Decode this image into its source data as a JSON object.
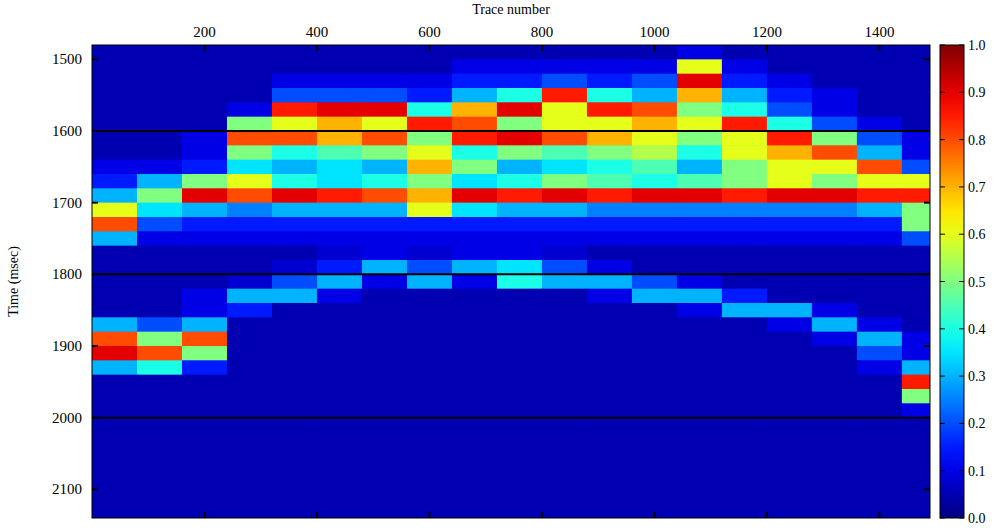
{
  "chart_data": {
    "type": "heatmap",
    "x_label": "Trace number",
    "y_label": "Time (msec)",
    "xlim": [
      0,
      1490
    ],
    "ylim": [
      1480,
      2140
    ],
    "xticks": [
      200,
      400,
      600,
      800,
      1000,
      1200,
      1400
    ],
    "yticks": [
      1500,
      1600,
      1700,
      1800,
      1900,
      2000,
      2100
    ],
    "x_edges": [
      0,
      80,
      160,
      240,
      320,
      400,
      480,
      560,
      640,
      720,
      800,
      880,
      960,
      1040,
      1120,
      1200,
      1280,
      1360,
      1440,
      1490
    ],
    "y_edges": [
      1480,
      1500,
      1520,
      1540,
      1560,
      1580,
      1600,
      1620,
      1640,
      1660,
      1680,
      1700,
      1720,
      1740,
      1760,
      1780,
      1800,
      1820,
      1840,
      1860,
      1880,
      1900,
      1920,
      1940,
      1960,
      1980,
      2000,
      2020,
      2040,
      2060,
      2080,
      2100,
      2120,
      2140
    ],
    "cells": [
      [
        0.05,
        0.05,
        0.05,
        0.05,
        0.05,
        0.05,
        0.05,
        0.05,
        0.05,
        0.05,
        0.05,
        0.05,
        0.05,
        0.1,
        0.05,
        0.05,
        0.05,
        0.05,
        0.05
      ],
      [
        0.05,
        0.05,
        0.05,
        0.05,
        0.05,
        0.05,
        0.05,
        0.05,
        0.1,
        0.1,
        0.1,
        0.1,
        0.1,
        0.6,
        0.1,
        0.05,
        0.05,
        0.05,
        0.05
      ],
      [
        0.05,
        0.05,
        0.05,
        0.05,
        0.1,
        0.1,
        0.1,
        0.1,
        0.15,
        0.15,
        0.2,
        0.15,
        0.2,
        0.9,
        0.15,
        0.1,
        0.05,
        0.05,
        0.05
      ],
      [
        0.05,
        0.05,
        0.05,
        0.05,
        0.2,
        0.2,
        0.2,
        0.15,
        0.3,
        0.4,
        0.85,
        0.4,
        0.3,
        0.7,
        0.3,
        0.15,
        0.1,
        0.05,
        0.05
      ],
      [
        0.05,
        0.05,
        0.05,
        0.1,
        0.85,
        0.9,
        0.9,
        0.4,
        0.7,
        0.9,
        0.6,
        0.85,
        0.8,
        0.5,
        0.4,
        0.2,
        0.1,
        0.05,
        0.05
      ],
      [
        0.05,
        0.05,
        0.05,
        0.5,
        0.6,
        0.7,
        0.6,
        0.85,
        0.8,
        0.5,
        0.6,
        0.6,
        0.7,
        0.6,
        0.85,
        0.4,
        0.2,
        0.1,
        0.05
      ],
      [
        0.05,
        0.05,
        0.1,
        0.8,
        0.8,
        0.7,
        0.8,
        0.5,
        0.85,
        0.9,
        0.8,
        0.7,
        0.6,
        0.5,
        0.6,
        0.85,
        0.5,
        0.2,
        0.1
      ],
      [
        0.05,
        0.05,
        0.1,
        0.5,
        0.4,
        0.45,
        0.5,
        0.6,
        0.4,
        0.5,
        0.45,
        0.5,
        0.55,
        0.4,
        0.6,
        0.7,
        0.8,
        0.3,
        0.1
      ],
      [
        0.1,
        0.1,
        0.15,
        0.35,
        0.3,
        0.35,
        0.3,
        0.7,
        0.5,
        0.3,
        0.35,
        0.4,
        0.45,
        0.3,
        0.5,
        0.6,
        0.6,
        0.8,
        0.2
      ],
      [
        0.15,
        0.3,
        0.5,
        0.6,
        0.4,
        0.35,
        0.4,
        0.5,
        0.35,
        0.4,
        0.5,
        0.45,
        0.4,
        0.45,
        0.5,
        0.6,
        0.5,
        0.6,
        0.6
      ],
      [
        0.3,
        0.5,
        0.9,
        0.8,
        0.9,
        0.85,
        0.8,
        0.7,
        0.9,
        0.85,
        0.9,
        0.85,
        0.9,
        0.9,
        0.85,
        0.9,
        0.9,
        0.85,
        0.85
      ],
      [
        0.6,
        0.35,
        0.3,
        0.25,
        0.3,
        0.3,
        0.3,
        0.6,
        0.35,
        0.3,
        0.3,
        0.25,
        0.25,
        0.25,
        0.25,
        0.25,
        0.25,
        0.3,
        0.5
      ],
      [
        0.8,
        0.2,
        0.15,
        0.15,
        0.15,
        0.15,
        0.15,
        0.15,
        0.15,
        0.15,
        0.15,
        0.15,
        0.15,
        0.15,
        0.15,
        0.15,
        0.15,
        0.15,
        0.5
      ],
      [
        0.3,
        0.1,
        0.1,
        0.1,
        0.1,
        0.1,
        0.1,
        0.1,
        0.1,
        0.1,
        0.1,
        0.1,
        0.1,
        0.1,
        0.1,
        0.1,
        0.1,
        0.1,
        0.2
      ],
      [
        0.05,
        0.05,
        0.05,
        0.05,
        0.05,
        0.08,
        0.1,
        0.08,
        0.1,
        0.1,
        0.08,
        0.05,
        0.05,
        0.05,
        0.05,
        0.05,
        0.05,
        0.05,
        0.05
      ],
      [
        0.05,
        0.05,
        0.05,
        0.05,
        0.08,
        0.15,
        0.3,
        0.2,
        0.3,
        0.35,
        0.2,
        0.1,
        0.05,
        0.05,
        0.05,
        0.05,
        0.05,
        0.05,
        0.05
      ],
      [
        0.05,
        0.05,
        0.05,
        0.08,
        0.2,
        0.3,
        0.1,
        0.3,
        0.1,
        0.4,
        0.3,
        0.3,
        0.2,
        0.1,
        0.05,
        0.05,
        0.05,
        0.05,
        0.05
      ],
      [
        0.05,
        0.05,
        0.1,
        0.3,
        0.3,
        0.1,
        0.05,
        0.05,
        0.05,
        0.05,
        0.05,
        0.1,
        0.3,
        0.3,
        0.15,
        0.05,
        0.05,
        0.05,
        0.05
      ],
      [
        0.05,
        0.05,
        0.1,
        0.15,
        0.05,
        0.05,
        0.05,
        0.05,
        0.05,
        0.05,
        0.05,
        0.05,
        0.05,
        0.1,
        0.3,
        0.3,
        0.1,
        0.05,
        0.05
      ],
      [
        0.3,
        0.2,
        0.3,
        0.05,
        0.05,
        0.05,
        0.05,
        0.05,
        0.05,
        0.05,
        0.05,
        0.05,
        0.05,
        0.05,
        0.05,
        0.1,
        0.3,
        0.1,
        0.05
      ],
      [
        0.8,
        0.5,
        0.8,
        0.05,
        0.05,
        0.05,
        0.05,
        0.05,
        0.05,
        0.05,
        0.05,
        0.05,
        0.05,
        0.05,
        0.05,
        0.05,
        0.1,
        0.3,
        0.1
      ],
      [
        0.9,
        0.8,
        0.5,
        0.05,
        0.05,
        0.05,
        0.05,
        0.05,
        0.05,
        0.05,
        0.05,
        0.05,
        0.05,
        0.05,
        0.05,
        0.05,
        0.05,
        0.2,
        0.1
      ],
      [
        0.3,
        0.4,
        0.15,
        0.05,
        0.05,
        0.05,
        0.05,
        0.05,
        0.05,
        0.05,
        0.05,
        0.05,
        0.05,
        0.05,
        0.05,
        0.05,
        0.05,
        0.1,
        0.3
      ],
      [
        0.05,
        0.05,
        0.05,
        0.05,
        0.05,
        0.05,
        0.05,
        0.05,
        0.05,
        0.05,
        0.05,
        0.05,
        0.05,
        0.05,
        0.05,
        0.05,
        0.05,
        0.05,
        0.85
      ],
      [
        0.05,
        0.05,
        0.05,
        0.05,
        0.05,
        0.05,
        0.05,
        0.05,
        0.05,
        0.05,
        0.05,
        0.05,
        0.05,
        0.05,
        0.05,
        0.05,
        0.05,
        0.05,
        0.5
      ],
      [
        0.05,
        0.05,
        0.05,
        0.05,
        0.05,
        0.05,
        0.05,
        0.05,
        0.05,
        0.05,
        0.05,
        0.05,
        0.05,
        0.05,
        0.05,
        0.05,
        0.05,
        0.05,
        0.1
      ],
      [
        0.05,
        0.05,
        0.05,
        0.05,
        0.05,
        0.05,
        0.05,
        0.05,
        0.05,
        0.05,
        0.05,
        0.05,
        0.05,
        0.05,
        0.05,
        0.05,
        0.05,
        0.05,
        0.05
      ],
      [
        0.05,
        0.05,
        0.05,
        0.05,
        0.05,
        0.05,
        0.05,
        0.05,
        0.05,
        0.05,
        0.05,
        0.05,
        0.05,
        0.05,
        0.05,
        0.05,
        0.05,
        0.05,
        0.05
      ],
      [
        0.05,
        0.05,
        0.05,
        0.05,
        0.05,
        0.05,
        0.05,
        0.05,
        0.05,
        0.05,
        0.05,
        0.05,
        0.05,
        0.05,
        0.05,
        0.05,
        0.05,
        0.05,
        0.05
      ],
      [
        0.05,
        0.05,
        0.05,
        0.05,
        0.05,
        0.05,
        0.05,
        0.05,
        0.05,
        0.05,
        0.05,
        0.05,
        0.05,
        0.05,
        0.05,
        0.05,
        0.05,
        0.05,
        0.05
      ],
      [
        0.05,
        0.05,
        0.05,
        0.05,
        0.05,
        0.05,
        0.05,
        0.05,
        0.05,
        0.05,
        0.05,
        0.05,
        0.05,
        0.05,
        0.05,
        0.05,
        0.05,
        0.05,
        0.05
      ],
      [
        0.05,
        0.05,
        0.05,
        0.05,
        0.05,
        0.05,
        0.05,
        0.05,
        0.05,
        0.05,
        0.05,
        0.05,
        0.05,
        0.05,
        0.05,
        0.05,
        0.05,
        0.05,
        0.05
      ],
      [
        0.05,
        0.05,
        0.05,
        0.05,
        0.05,
        0.05,
        0.05,
        0.05,
        0.05,
        0.05,
        0.05,
        0.05,
        0.05,
        0.05,
        0.05,
        0.05,
        0.05,
        0.05,
        0.05
      ]
    ],
    "colorbar_range": [
      0,
      1
    ],
    "colorbar_ticks": [
      {
        "value": 0,
        "label": "0.0"
      },
      0.1,
      0.2,
      0.3,
      0.4,
      0.5,
      0.6,
      0.7,
      0.8,
      0.9,
      {
        "value": 1,
        "label": "1.0"
      }
    ],
    "reference_lines": [
      1600,
      1800,
      2000
    ]
  }
}
